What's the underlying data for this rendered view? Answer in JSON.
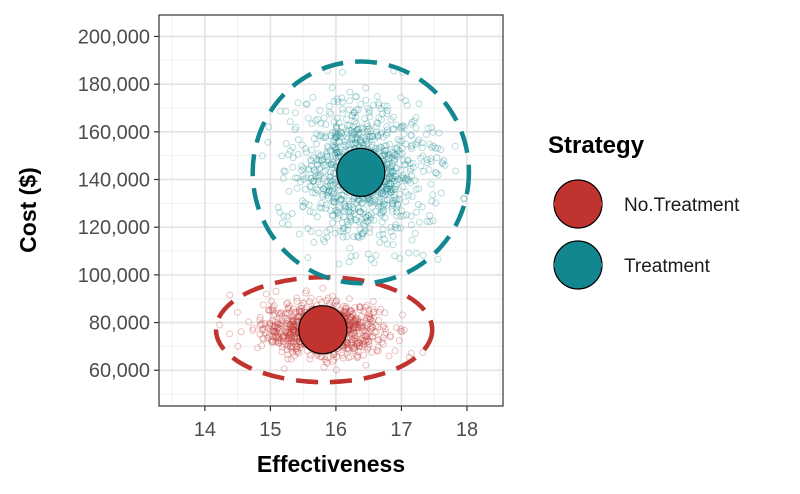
{
  "chart_data": {
    "type": "scatter",
    "xlabel": "Effectiveness",
    "ylabel": "Cost ($)",
    "xlim": [
      13.3,
      18.55
    ],
    "ylim": [
      45000,
      209000
    ],
    "x_ticks": [
      14,
      15,
      16,
      17,
      18
    ],
    "x_tick_labels": [
      "14",
      "15",
      "16",
      "17",
      "18"
    ],
    "y_ticks": [
      60000,
      80000,
      100000,
      120000,
      140000,
      160000,
      180000,
      200000
    ],
    "y_tick_labels": [
      "60,000",
      "80,000",
      "100,000",
      "120,000",
      "140,000",
      "160,000",
      "180,000",
      "200,000"
    ],
    "grid": true,
    "legend": {
      "title": "Strategy",
      "placement": "right"
    },
    "series": [
      {
        "name": "No.Treatment",
        "color": "#C1332F",
        "mean": {
          "x": 15.8,
          "y": 77000
        },
        "spread": {
          "sd_x": 0.45,
          "sd_y": 5500,
          "n": 1000
        },
        "ellipse": {
          "center_x": 15.82,
          "center_y": 77000,
          "radius_x": 1.65,
          "radius_y": 22000
        }
      },
      {
        "name": "Treatment",
        "color": "#138790",
        "mean": {
          "x": 16.38,
          "y": 143000
        },
        "spread": {
          "sd_x": 0.5,
          "sd_y": 14500,
          "n": 1000
        },
        "ellipse": {
          "center_x": 16.38,
          "center_y": 143000,
          "radius_x": 1.65,
          "radius_y": 46500
        }
      }
    ]
  }
}
